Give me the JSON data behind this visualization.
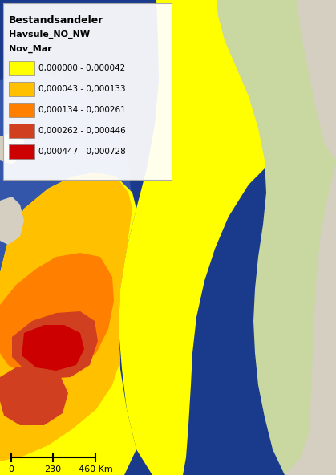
{
  "title1": "Bestandsandeler",
  "title2": "Havsule_NO_NW",
  "title3": "Nov_Mar",
  "legend_entries": [
    {
      "label": "0,000000 - 0,000042",
      "color": "#FFFF00"
    },
    {
      "label": "0,000043 - 0,000133",
      "color": "#FFC000"
    },
    {
      "label": "0,000134 - 0,000261",
      "color": "#FF8000"
    },
    {
      "label": "0,000262 - 0,000446",
      "color": "#D04020"
    },
    {
      "label": "0,000447 - 0,000728",
      "color": "#CC0000"
    }
  ],
  "scalebar_text": [
    "0",
    "230",
    "460 Km"
  ],
  "ocean_color": "#1a3a8c",
  "shallow_color": "#6688cc",
  "norway_color": "#c8d8a0",
  "land_color": "#d4cfc0",
  "yellow_color": "#FFFF00",
  "fig_width": 4.19,
  "fig_height": 5.92,
  "dpi": 100
}
